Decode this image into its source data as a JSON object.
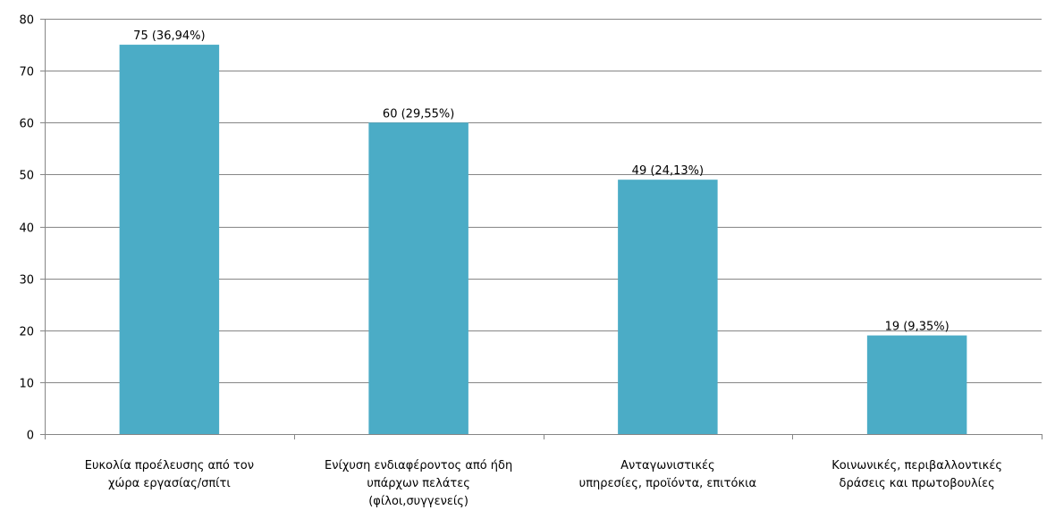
{
  "chart_data": {
    "type": "bar",
    "categories": [
      [
        "Ευκολία προέλευσης  από τον",
        "χώρα εργασίας/σπίτι"
      ],
      [
        "Ενίχυση ενδιαφέροντος από ήδη",
        "υπάρχων πελάτες",
        "(φίλοι,συγγενείς)"
      ],
      [
        "Ανταγωνιστικές",
        "υπηρεσίες, προϊόντα,  επιτόκια"
      ],
      [
        "Κοινωνικές, περιβαλλοντικές",
        "δράσεις και πρωτοβουλίες"
      ]
    ],
    "values": [
      75,
      60,
      49,
      19
    ],
    "data_labels": [
      "75 (36,94%)",
      "60 (29,55%)",
      "49 (24,13%)",
      "19 (9,35%)"
    ],
    "ylim": [
      0,
      80
    ],
    "yticks": [
      0,
      10,
      20,
      30,
      40,
      50,
      60,
      70,
      80
    ],
    "title": "",
    "xlabel": "",
    "ylabel": "",
    "grid": true,
    "bar_color": "#4BACC6",
    "grid_color": "#868686"
  }
}
